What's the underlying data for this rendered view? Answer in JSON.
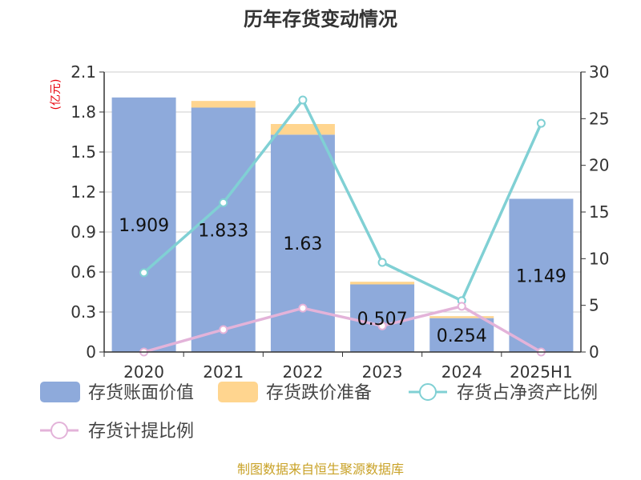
{
  "chart_data": {
    "type": "bar",
    "title": "历年存货变动情况",
    "categories": [
      "2020",
      "2021",
      "2022",
      "2023",
      "2024",
      "2025H1"
    ],
    "left_axis": {
      "unit_label": "(亿元)",
      "ylim": [
        0,
        2.1
      ],
      "ticks": [
        "0",
        "0.3",
        "0.6",
        "0.9",
        "1.2",
        "1.5",
        "1.8",
        "2.1"
      ]
    },
    "right_axis": {
      "ylim": [
        0,
        30
      ],
      "ticks": [
        "0",
        "5",
        "10",
        "15",
        "20",
        "25",
        "30"
      ]
    },
    "series": [
      {
        "name": "存货账面价值",
        "kind": "bar",
        "axis": "left",
        "color": "#8eaadb",
        "values": [
          1.909,
          1.833,
          1.63,
          0.507,
          0.254,
          1.149
        ],
        "labels": [
          "1.909",
          "1.833",
          "1.63",
          "0.507",
          "0.254",
          "1.149"
        ]
      },
      {
        "name": "存货跌价准备",
        "kind": "bar",
        "axis": "left",
        "color": "#ffd58f",
        "values": [
          0.0,
          0.05,
          0.08,
          0.02,
          0.015,
          0.0
        ]
      },
      {
        "name": "存货占净资产比例",
        "kind": "line",
        "axis": "right",
        "color": "#80d0d4",
        "values": [
          8.5,
          16.0,
          27.0,
          9.6,
          5.5,
          24.5
        ]
      },
      {
        "name": "存货计提比例",
        "kind": "line",
        "axis": "right",
        "color": "#e3b3d9",
        "values": [
          0.0,
          2.4,
          4.7,
          2.8,
          4.9,
          0.0
        ]
      }
    ],
    "grid": true,
    "legend_position": "bottom"
  },
  "source_text": "制图数据来自恒生聚源数据库"
}
